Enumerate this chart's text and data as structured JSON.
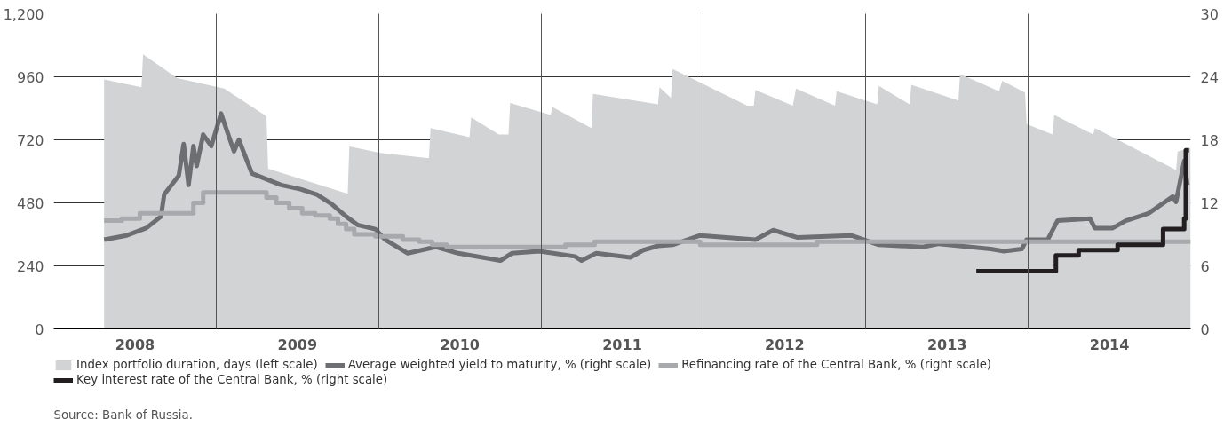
{
  "chart_data": {
    "type": "area",
    "xlim": [
      2008,
      2015
    ],
    "xticks": [
      {
        "value": 2008.5,
        "label": "2008"
      },
      {
        "value": 2009,
        "label": null
      },
      {
        "value": 2009.5,
        "label": "2009"
      },
      {
        "value": 2010,
        "label": null
      },
      {
        "value": 2010.5,
        "label": "2010"
      },
      {
        "value": 2011,
        "label": null
      },
      {
        "value": 2011.5,
        "label": "2011"
      },
      {
        "value": 2012,
        "label": null
      },
      {
        "value": 2012.5,
        "label": "2012"
      },
      {
        "value": 2013,
        "label": null
      },
      {
        "value": 2013.5,
        "label": "2013"
      },
      {
        "value": 2014,
        "label": null
      },
      {
        "value": 2014.5,
        "label": "2014"
      }
    ],
    "ylim": [
      0,
      1200
    ],
    "yticks": [
      0,
      240,
      480,
      720,
      960,
      {
        "value": 1200,
        "label": "1,200"
      }
    ],
    "y2lim": [
      0,
      30
    ],
    "y2ticks": [
      0,
      6,
      12,
      18,
      24,
      30
    ],
    "grid": true,
    "legend": "bottom",
    "series": [
      {
        "name": "Index portfolio duration, days (left scale)",
        "color": "#d1d3d4",
        "x": [
          2008.31,
          2008.54,
          2008.55,
          2008.76,
          2009.05,
          2009.31,
          2009.32,
          2009.81,
          2009.82,
          2010.01,
          2010.31,
          2010.32,
          2010.56,
          2010.57,
          2010.74,
          2010.8,
          2010.81,
          2011.06,
          2011.07,
          2011.31,
          2011.32,
          2011.72,
          2011.73,
          2011.8,
          2011.81,
          2012.27,
          2012.31,
          2012.32,
          2012.55,
          2012.57,
          2012.81,
          2012.82,
          2013.07,
          2013.08,
          2013.27,
          2013.28,
          2013.57,
          2013.58,
          2013.82,
          2013.84,
          2013.98,
          2013.99,
          2014.15,
          2014.16,
          2014.4,
          2014.41,
          2014.91,
          2014.92,
          2015.0
        ],
        "values": [
          950,
          920,
          1045,
          955,
          915,
          810,
          610,
          515,
          695,
          670,
          650,
          765,
          730,
          805,
          740,
          740,
          860,
          815,
          845,
          765,
          895,
          855,
          920,
          880,
          990,
          850,
          850,
          910,
          850,
          915,
          850,
          905,
          855,
          925,
          855,
          930,
          870,
          970,
          905,
          945,
          900,
          780,
          740,
          815,
          740,
          765,
          605,
          675,
          690
        ]
      },
      {
        "name": "Average weighted yield to maturity, % (right scale)",
        "type": "line",
        "axis": "y2",
        "color": "#6d6e71",
        "x": [
          2008.31,
          2008.45,
          2008.57,
          2008.66,
          2008.68,
          2008.77,
          2008.8,
          2008.83,
          2008.86,
          2008.88,
          2008.92,
          2008.97,
          2009.03,
          2009.11,
          2009.14,
          2009.22,
          2009.4,
          2009.52,
          2009.62,
          2009.71,
          2009.8,
          2009.87,
          2009.98,
          2010.04,
          2010.18,
          2010.35,
          2010.49,
          2010.75,
          2010.82,
          2010.99,
          2011.21,
          2011.25,
          2011.34,
          2011.55,
          2011.63,
          2011.72,
          2011.81,
          2011.98,
          2012.32,
          2012.43,
          2012.58,
          2012.91,
          2013.08,
          2013.35,
          2013.45,
          2013.77,
          2013.85,
          2013.96,
          2013.99,
          2014.12,
          2014.18,
          2014.38,
          2014.41,
          2014.52,
          2014.6,
          2014.74,
          2014.89,
          2014.91,
          2014.96,
          2014.98
        ],
        "values": [
          8.5,
          8.9,
          9.6,
          10.7,
          12.8,
          14.6,
          17.6,
          13.7,
          17.4,
          15.5,
          18.5,
          17.4,
          20.5,
          16.9,
          18.0,
          14.8,
          13.7,
          13.3,
          12.8,
          11.9,
          10.7,
          9.9,
          9.5,
          8.5,
          7.2,
          7.8,
          7.2,
          6.5,
          7.2,
          7.4,
          6.9,
          6.5,
          7.2,
          6.8,
          7.5,
          7.9,
          8.0,
          8.9,
          8.5,
          9.4,
          8.7,
          8.9,
          8.0,
          7.8,
          8.1,
          7.6,
          7.4,
          7.6,
          8.5,
          8.5,
          10.3,
          10.5,
          9.6,
          9.6,
          10.3,
          11.0,
          12.6,
          12.1,
          16.0,
          13.7
        ]
      },
      {
        "name": "Refinancing rate of the Central Bank, % (right scale)",
        "type": "step",
        "axis": "y2",
        "color": "#a7a9ac",
        "x": [
          2008.31,
          2008.42,
          2008.53,
          2008.86,
          2008.92,
          2009.31,
          2009.37,
          2009.45,
          2009.53,
          2009.61,
          2009.7,
          2009.75,
          2009.8,
          2009.85,
          2009.98,
          2010.15,
          2010.25,
          2010.33,
          2010.42,
          2011.15,
          2011.33,
          2011.98,
          2012.7,
          2015.0
        ],
        "values": [
          10.3,
          10.5,
          11,
          12,
          13,
          12.5,
          12,
          11.5,
          11,
          10.8,
          10.5,
          10,
          9.5,
          9,
          8.8,
          8.5,
          8.3,
          8,
          7.8,
          8,
          8.3,
          8,
          8.3,
          8.3
        ]
      },
      {
        "name": "Key interest rate of the Central Bank, % (right scale)",
        "type": "step",
        "axis": "y2",
        "color": "#231f20",
        "x": [
          2013.68,
          2014.17,
          2014.31,
          2014.55,
          2014.83,
          2014.96,
          2014.97,
          2014.99
        ],
        "values": [
          5.5,
          7,
          7.5,
          8,
          9.5,
          10.5,
          17,
          17
        ]
      }
    ],
    "annotations": [
      "Source: Bank of Russia."
    ]
  }
}
